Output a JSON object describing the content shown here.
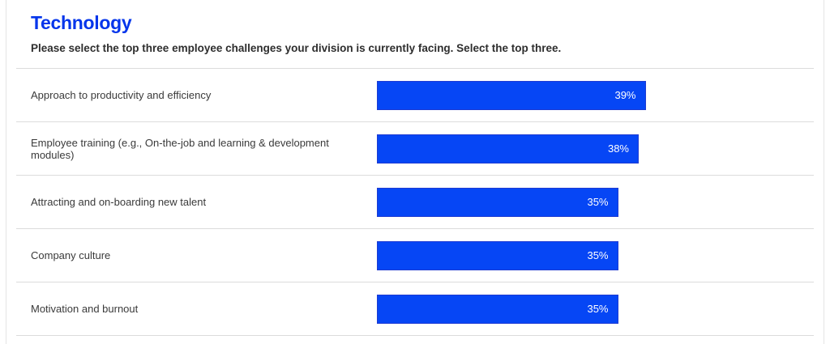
{
  "page": {
    "title": "Technology",
    "subtitle": "Please select the top three employee challenges your division is currently facing. Select the top three."
  },
  "colors": {
    "accent": "#0435eb",
    "bar_fill": "#0646f5",
    "bar_border": "#1e3bd2",
    "divider": "#dcdcdc",
    "label_text": "#3a3a3a",
    "value_text": "#ffffff"
  },
  "chart_data": {
    "type": "bar",
    "orientation": "horizontal",
    "title": "Technology",
    "subtitle": "Please select the top three employee challenges your division is currently facing. Select the top three.",
    "categories": [
      "Approach to productivity and efficiency",
      "Employee training (e.g., On-the-job and learning & development modules)",
      "Attracting and on-boarding new talent",
      "Company culture",
      "Motivation and burnout"
    ],
    "values": [
      39,
      38,
      35,
      35,
      35
    ],
    "value_labels": [
      "39%",
      "38%",
      "35%",
      "35%",
      "35%"
    ],
    "value_format": "percent",
    "value_label_position": "inside-right",
    "xlim": [
      0,
      63
    ],
    "grid": false,
    "legend": false
  }
}
